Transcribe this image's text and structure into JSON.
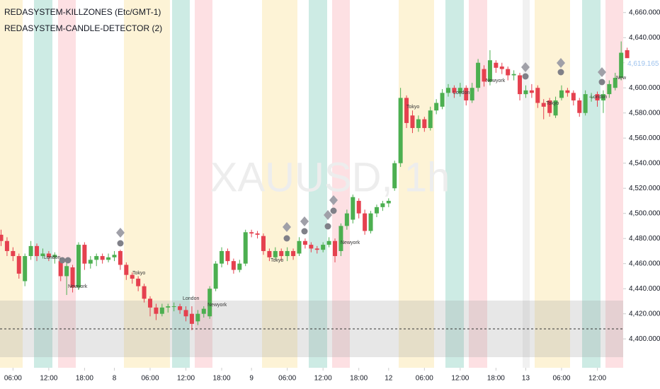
{
  "chart_data": {
    "type": "candlestick",
    "indicators": [
      "REDASYSTEM-KILLZONES (Etc/GMT-1)",
      "REDASYSTEM-CANDLE-DETECTOR (2)"
    ],
    "watermark": "XAUUSD, 1h",
    "x": [
      null,
      null,
      "06:00",
      null,
      null,
      null,
      null,
      null,
      "12:00",
      null,
      null,
      null,
      null,
      null,
      "18:00",
      null,
      null,
      null,
      null,
      "8",
      null,
      null,
      null,
      null,
      null,
      "06:00",
      null,
      null,
      null,
      null,
      null,
      "12:00",
      null,
      null,
      null,
      null,
      null,
      "18:00",
      null,
      null,
      null,
      null,
      "9",
      null,
      null,
      null,
      null,
      null,
      "06:00",
      null,
      null,
      null,
      null,
      null,
      "12:00",
      null,
      null,
      null,
      null,
      null,
      "18:00",
      null,
      null,
      null,
      null,
      "12",
      null,
      null,
      null,
      null,
      null,
      "06:00",
      null,
      null,
      null,
      null,
      null,
      "12:00",
      null,
      null,
      null,
      null,
      null,
      "18:00",
      null,
      null,
      null,
      null,
      "13",
      null,
      null,
      null,
      null,
      null,
      "06:00",
      null,
      null,
      null,
      null,
      null,
      "12:00",
      null,
      null,
      null,
      null,
      null
    ],
    "open": [
      4483,
      4478,
      4470,
      4466,
      4446,
      4466,
      4474,
      4466,
      4468,
      4465,
      4462,
      4450,
      4457,
      4441,
      4475,
      4460,
      4463,
      4466,
      4463,
      4465,
      4470,
      4459,
      4451,
      4448,
      4442,
      4432,
      4425,
      4420,
      4425,
      4426,
      4426,
      4423,
      4420,
      4414,
      4420,
      4418,
      4440,
      4460,
      4470,
      4462,
      4455,
      4460,
      4485,
      4484,
      4482,
      4470,
      4465,
      4470,
      4466,
      4470,
      4468,
      4478,
      4475,
      4472,
      4471,
      4475,
      4478,
      4470,
      4490,
      4495,
      4510,
      4500,
      4486,
      4500,
      4505,
      4508,
      4520,
      4540,
      4592,
      4578,
      4568,
      4575,
      4568,
      4582,
      4585,
      4596,
      4600,
      4596,
      4600,
      4590,
      4600,
      4615,
      4605,
      4620,
      4617,
      4615,
      4610,
      4610,
      4595,
      4598,
      4600,
      4588,
      4590,
      4578,
      4592,
      4598,
      4596,
      4590,
      4580,
      4593,
      4595,
      4590,
      4595,
      4600,
      4608,
      4630
    ],
    "high": [
      4487,
      4481,
      4473,
      4468,
      4468,
      4478,
      4476,
      4472,
      4470,
      4469,
      4464,
      4461,
      4459,
      4477,
      4477,
      4466,
      4468,
      4468,
      4468,
      4470,
      4471,
      4461,
      4453,
      4450,
      4444,
      4434,
      4428,
      4428,
      4428,
      4429,
      4428,
      4426,
      4426,
      4423,
      4426,
      4442,
      4462,
      4473,
      4472,
      4464,
      4463,
      4487,
      4487,
      4486,
      4484,
      4472,
      4473,
      4472,
      4473,
      4472,
      4481,
      4480,
      4477,
      4474,
      4477,
      4481,
      4480,
      4492,
      4503,
      4515,
      4512,
      4503,
      4502,
      4507,
      4510,
      4512,
      4542,
      4600,
      4594,
      4582,
      4578,
      4577,
      4585,
      4591,
      4599,
      4603,
      4602,
      4604,
      4602,
      4604,
      4623,
      4618,
      4630,
      4622,
      4620,
      4617,
      4614,
      4612,
      4602,
      4603,
      4602,
      4591,
      4592,
      4593,
      4602,
      4600,
      4598,
      4592,
      4598,
      4596,
      4597,
      4598,
      4606,
      4612,
      4637,
      4632
    ],
    "low": [
      4474,
      4466,
      4462,
      4448,
      4442,
      4463,
      4462,
      4464,
      4462,
      4460,
      4446,
      4435,
      4437,
      4439,
      4455,
      4456,
      4458,
      4460,
      4461,
      4462,
      4455,
      4447,
      4444,
      4438,
      4429,
      4418,
      4415,
      4418,
      4421,
      4422,
      4420,
      4414,
      4407,
      4411,
      4417,
      4416,
      4438,
      4457,
      4459,
      4452,
      4453,
      4458,
      4481,
      4480,
      4467,
      4462,
      4463,
      4462,
      4462,
      4463,
      4466,
      4472,
      4469,
      4468,
      4469,
      4473,
      4461,
      4466,
      4487,
      4492,
      4496,
      4483,
      4484,
      4497,
      4502,
      4505,
      4518,
      4537,
      4568,
      4564,
      4565,
      4565,
      4566,
      4579,
      4583,
      4593,
      4592,
      4593,
      4586,
      4588,
      4597,
      4601,
      4602,
      4612,
      4611,
      4606,
      4606,
      4590,
      4592,
      4592,
      4584,
      4575,
      4577,
      4576,
      4590,
      4593,
      4586,
      4577,
      4578,
      4589,
      4585,
      4580,
      4592,
      4598,
      4606,
      4616
    ],
    "close": [
      4478,
      4470,
      4466,
      4452,
      4466,
      4474,
      4466,
      4468,
      4465,
      4467,
      4450,
      4458,
      4441,
      4475,
      4460,
      4463,
      4466,
      4463,
      4465,
      4467,
      4459,
      4451,
      4448,
      4442,
      4432,
      4425,
      4420,
      4425,
      4426,
      4426,
      4423,
      4418,
      4412,
      4420,
      4424,
      4440,
      4460,
      4470,
      4462,
      4455,
      4460,
      4485,
      4484,
      4483,
      4470,
      4465,
      4470,
      4466,
      4470,
      4466,
      4478,
      4475,
      4472,
      4471,
      4475,
      4478,
      4466,
      4490,
      4500,
      4513,
      4500,
      4486,
      4500,
      4505,
      4508,
      4510,
      4540,
      4592,
      4572,
      4568,
      4575,
      4568,
      4582,
      4588,
      4596,
      4600,
      4596,
      4600,
      4590,
      4600,
      4620,
      4605,
      4622,
      4616,
      4615,
      4610,
      4611,
      4595,
      4598,
      4596,
      4588,
      4585,
      4580,
      4590,
      4598,
      4596,
      4590,
      4580,
      4595,
      4593,
      4590,
      4595,
      4603,
      4608,
      4628,
      4619.165
    ],
    "up_color": "#4caf50",
    "down_color": "#e5414f",
    "ylim": [
      4377,
      4670
    ],
    "yticks": [
      {
        "value": 4400,
        "label": "4,400.000"
      },
      {
        "value": 4420,
        "label": "4,420.000"
      },
      {
        "value": 4440,
        "label": "4,440.000"
      },
      {
        "value": 4460,
        "label": "4,460.000"
      },
      {
        "value": 4480,
        "label": "4,480.000"
      },
      {
        "value": 4500,
        "label": "4,500.000"
      },
      {
        "value": 4520,
        "label": "4,520.000"
      },
      {
        "value": 4540,
        "label": "4,540.000"
      },
      {
        "value": 4560,
        "label": "4,560.000"
      },
      {
        "value": 4580,
        "label": "4,580.000"
      },
      {
        "value": 4600,
        "label": "4,600.000"
      },
      {
        "value": 4620,
        "label": "4,620.000"
      },
      {
        "value": 4640,
        "label": "4,640.000"
      },
      {
        "value": 4660,
        "label": "4,660.000"
      }
    ],
    "last_price_label": "4,619.165",
    "annotations": [
      "London",
      "Newyork",
      "Tokyo",
      "London",
      "Newyork",
      "Tokyo",
      "Newyork",
      "Tokyo",
      "London",
      "Newyork",
      "Tokyo",
      "London",
      "New"
    ]
  }
}
